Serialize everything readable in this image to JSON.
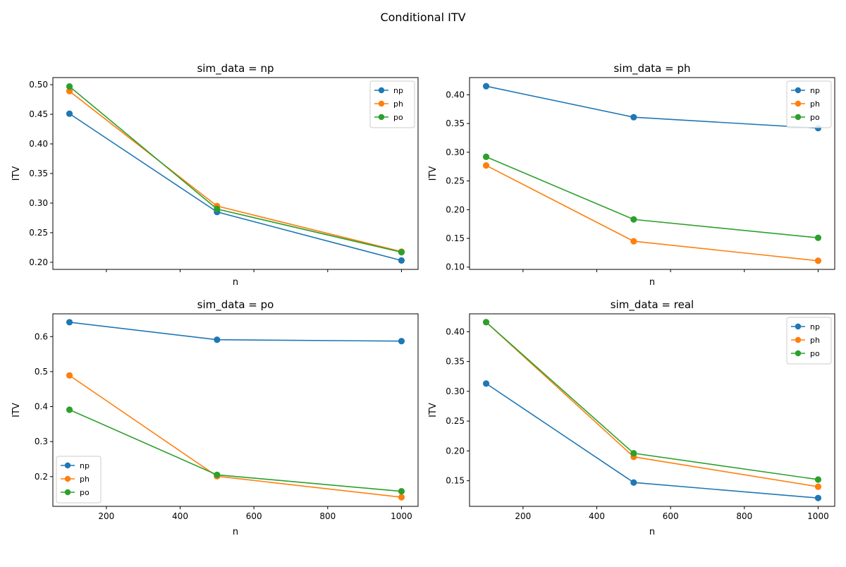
{
  "figure": {
    "suptitle": "Conditional ITV"
  },
  "colors": {
    "np": "#1f77b4",
    "ph": "#ff7f0e",
    "po": "#2ca02c",
    "axis": "#000000"
  },
  "chart_data": [
    {
      "type": "line",
      "title": "sim_data = np",
      "xlabel": "n",
      "ylabel": "ITV",
      "x": [
        100,
        500,
        1000
      ],
      "xlim": [
        55,
        1045
      ],
      "ylim": [
        0.188,
        0.512
      ],
      "xticks": [
        200,
        400,
        600,
        800,
        1000
      ],
      "xtick_labels_shown": false,
      "yticks": [
        0.2,
        0.25,
        0.3,
        0.35,
        0.4,
        0.45,
        0.5
      ],
      "ytick_labels": [
        "0.20",
        "0.25",
        "0.30",
        "0.35",
        "0.40",
        "0.45",
        "0.50"
      ],
      "legend": "top-right",
      "series": [
        {
          "name": "np",
          "values": [
            0.451,
            0.285,
            0.203
          ]
        },
        {
          "name": "ph",
          "values": [
            0.489,
            0.295,
            0.218
          ]
        },
        {
          "name": "po",
          "values": [
            0.497,
            0.29,
            0.217
          ]
        }
      ]
    },
    {
      "type": "line",
      "title": "sim_data = ph",
      "xlabel": "n",
      "ylabel": "ITV",
      "x": [
        100,
        500,
        1000
      ],
      "xlim": [
        55,
        1045
      ],
      "ylim": [
        0.096,
        0.43
      ],
      "xticks": [
        200,
        400,
        600,
        800,
        1000
      ],
      "xtick_labels_shown": false,
      "yticks": [
        0.1,
        0.15,
        0.2,
        0.25,
        0.3,
        0.35,
        0.4
      ],
      "ytick_labels": [
        "0.10",
        "0.15",
        "0.20",
        "0.25",
        "0.30",
        "0.35",
        "0.40"
      ],
      "legend": "top-right",
      "series": [
        {
          "name": "np",
          "values": [
            0.415,
            0.361,
            0.342
          ]
        },
        {
          "name": "ph",
          "values": [
            0.277,
            0.145,
            0.111
          ]
        },
        {
          "name": "po",
          "values": [
            0.292,
            0.183,
            0.151
          ]
        }
      ]
    },
    {
      "type": "line",
      "title": "sim_data = po",
      "xlabel": "n",
      "ylabel": "ITV",
      "x": [
        100,
        500,
        1000
      ],
      "xlim": [
        55,
        1045
      ],
      "ylim": [
        0.115,
        0.665
      ],
      "xticks": [
        200,
        400,
        600,
        800,
        1000
      ],
      "xtick_labels_shown": true,
      "yticks": [
        0.2,
        0.3,
        0.4,
        0.5,
        0.6
      ],
      "ytick_labels": [
        "0.2",
        "0.3",
        "0.4",
        "0.5",
        "0.6"
      ],
      "legend": "lower-left",
      "series": [
        {
          "name": "np",
          "values": [
            0.641,
            0.591,
            0.587
          ]
        },
        {
          "name": "ph",
          "values": [
            0.489,
            0.201,
            0.141
          ]
        },
        {
          "name": "po",
          "values": [
            0.391,
            0.205,
            0.158
          ]
        }
      ]
    },
    {
      "type": "line",
      "title": "sim_data = real",
      "xlabel": "n",
      "ylabel": "ITV",
      "x": [
        100,
        500,
        1000
      ],
      "xlim": [
        55,
        1045
      ],
      "ylim": [
        0.107,
        0.43
      ],
      "xticks": [
        200,
        400,
        600,
        800,
        1000
      ],
      "xtick_labels_shown": true,
      "yticks": [
        0.15,
        0.2,
        0.25,
        0.3,
        0.35,
        0.4
      ],
      "ytick_labels": [
        "0.15",
        "0.20",
        "0.25",
        "0.30",
        "0.35",
        "0.40"
      ],
      "legend": "top-right",
      "series": [
        {
          "name": "np",
          "values": [
            0.313,
            0.147,
            0.121
          ]
        },
        {
          "name": "ph",
          "values": [
            0.416,
            0.19,
            0.14
          ]
        },
        {
          "name": "po",
          "values": [
            0.416,
            0.196,
            0.152
          ]
        }
      ]
    }
  ]
}
